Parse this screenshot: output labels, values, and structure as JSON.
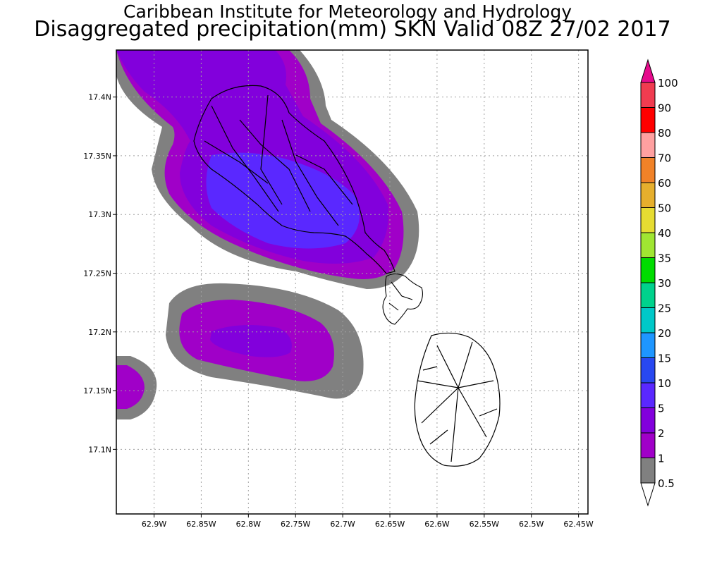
{
  "title": {
    "line1": "Caribbean Institute for Meteorology and Hydrology",
    "line2": "Disaggregated precipitation(mm) SKN Valid 08Z 27/02 2017"
  },
  "map": {
    "lon_range": [
      -62.94,
      -62.44
    ],
    "lat_range": [
      17.045,
      17.44
    ],
    "lat_ticks": [
      "17.1N",
      "17.15N",
      "17.2N",
      "17.25N",
      "17.3N",
      "17.35N",
      "17.4N"
    ],
    "lat_values": [
      17.1,
      17.15,
      17.2,
      17.25,
      17.3,
      17.35,
      17.4
    ],
    "lon_ticks": [
      "62.9W",
      "62.85W",
      "62.8W",
      "62.75W",
      "62.7W",
      "62.65W",
      "62.6W",
      "62.55W",
      "62.5W",
      "62.45W"
    ],
    "lon_values": [
      -62.9,
      -62.85,
      -62.8,
      -62.75,
      -62.7,
      -62.65,
      -62.6,
      -62.55,
      -62.5,
      -62.45
    ],
    "grid": true,
    "features": [
      "Nevis",
      "St. Kitts"
    ]
  },
  "legend": {
    "labels": [
      "0.5",
      "1",
      "2",
      "5",
      "10",
      "15",
      "20",
      "25",
      "30",
      "35",
      "40",
      "50",
      "60",
      "70",
      "80",
      "90",
      "100"
    ],
    "colors": [
      "#808080",
      "#a000c8",
      "#8200dc",
      "#5a28ff",
      "#2848f0",
      "#1e96ff",
      "#00c8c8",
      "#00d28c",
      "#00dc00",
      "#a0e632",
      "#e6dc32",
      "#e6af2d",
      "#f08228",
      "#ffa0a0",
      "#ff0000",
      "#f03c50",
      "#e60a8c"
    ],
    "under_color": "#ffffff",
    "over_color": "#e60a8c"
  }
}
